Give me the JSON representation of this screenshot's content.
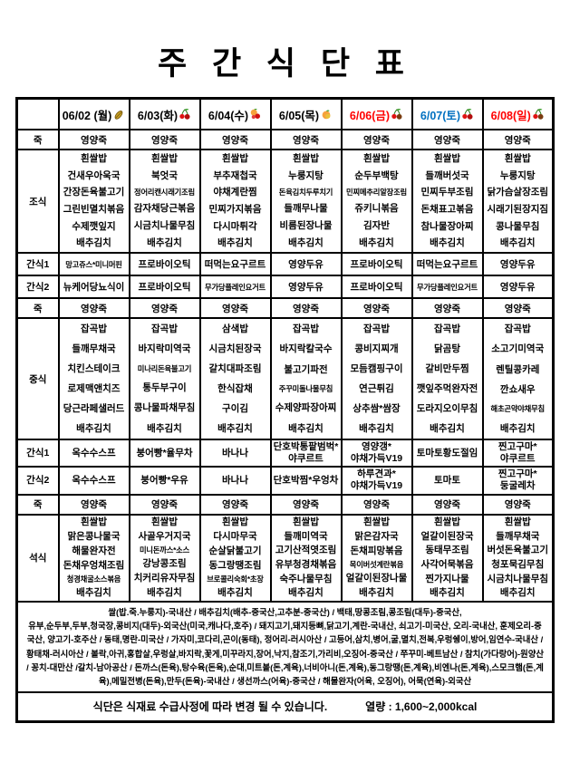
{
  "page_title": "주 간 식 단 표",
  "table": {
    "days": [
      {
        "label": "06/02 (월)",
        "color": "#000000",
        "icon": "grain-icon"
      },
      {
        "label": "6/03(화)",
        "color": "#000000",
        "icon": "cherry-icon"
      },
      {
        "label": "6/04(수)",
        "color": "#000000",
        "icon": "peach-cherry-icon"
      },
      {
        "label": "6/05(목)",
        "color": "#000000",
        "icon": "peach-icon"
      },
      {
        "label": "6/06(금)",
        "color": "#ff0000",
        "icon": "cherry-icon"
      },
      {
        "label": "6/07(토)",
        "color": "#0070c0",
        "icon": "cherry-icon"
      },
      {
        "label": "6/08(일)",
        "color": "#ff0000",
        "icon": "cherry-icon"
      }
    ],
    "rows": {
      "porridge1": {
        "label": "죽",
        "values": [
          "영양죽",
          "영양죽",
          "영양죽",
          "영양죽",
          "영양죽",
          "영양죽",
          "영양죽"
        ]
      },
      "breakfast": {
        "label": "조식",
        "days": [
          [
            "흰쌀밥",
            "건새우아욱국",
            "간장돈육불고기",
            "그린빈멸치볶음",
            "수제깻잎지",
            "배추김치"
          ],
          [
            "흰쌀밥",
            "북엇국",
            "정어리캔시래기조림",
            "감자채당근볶음",
            "시금치나물무침",
            "배추김치"
          ],
          [
            "흰쌀밥",
            "부추재첩국",
            "야채계란찜",
            "민찌가지볶음",
            "다시마튀각",
            "배추김치"
          ],
          [
            "흰쌀밥",
            "누룽지탕",
            "돈육김치두루치기",
            "들깨무나물",
            "비름된장나물",
            "배추김치"
          ],
          [
            "흰쌀밥",
            "순두부백탕",
            "민찌메추리알장조림",
            "쥬키니볶음",
            "김자반",
            "배추김치"
          ],
          [
            "흰쌀밥",
            "들깨버섯국",
            "민찌두부조림",
            "돈채표고볶음",
            "참나물장아찌",
            "배추김치"
          ],
          [
            "흰쌀밥",
            "누룽지탕",
            "닭가슴살장조림",
            "시래기된장지짐",
            "콩나물무침",
            "배추김치"
          ]
        ]
      },
      "snack1am": {
        "label": "간식1",
        "values": [
          "망고쥬스*미니머핀",
          "프로바이오틱",
          "떠먹는요구르트",
          "영양두유",
          "프로바이오틱",
          "떠먹는요구르트",
          "영양두유"
        ]
      },
      "snack2am": {
        "label": "간식2",
        "values": [
          "뉴케어당뇨식이",
          "프로바이오틱",
          "무가당플레인요거트",
          "영양두유",
          "프로바이오틱",
          "무가당플레인요거트",
          "영양두유"
        ]
      },
      "porridge2": {
        "label": "죽",
        "values": [
          "영양죽",
          "영양죽",
          "영양죽",
          "영양죽",
          "영양죽",
          "영양죽",
          "영양죽"
        ]
      },
      "lunch": {
        "label": "중식",
        "days": [
          [
            "잡곡밥",
            "들깨무채국",
            "치킨스테이크",
            "로제맥앤치즈",
            "당근라페샐러드",
            "배추김치"
          ],
          [
            "잡곡밥",
            "바지락미역국",
            "미나리돈육불고기",
            "통두부구이",
            "콩나물파채무침",
            "배추김치"
          ],
          [
            "삼색밥",
            "시금치된장국",
            "갈치대파조림",
            "한식잡채",
            "구이김",
            "배추김치"
          ],
          [
            "잡곡밥",
            "바지락칼국수",
            "불고기파전",
            "주꾸미돌나물무침",
            "수제양파장아찌",
            "배추김치"
          ],
          [
            "잡곡밥",
            "콩비지찌개",
            "모듬캠핑구이",
            "연근튀김",
            "상추쌈*쌈장",
            "배추김치"
          ],
          [
            "잡곡밥",
            "닭곰탕",
            "갈비만두찜",
            "깻잎주먹완자전",
            "도라지오이무침",
            "배추김치"
          ],
          [
            "잡곡밥",
            "소고기미역국",
            "렌틸콩카레",
            "깐쇼새우",
            "해초곤약야채무침",
            "배추김치"
          ]
        ]
      },
      "snack1pm": {
        "label": "간식1",
        "values": [
          "옥수수스프",
          "붕어빵*율무차",
          "바나나",
          "단호박통팥범벅*야쿠르트",
          "영양갱*야채가득V19",
          "토마토황도절임",
          "찐고구마*야쿠르트"
        ]
      },
      "snack2pm": {
        "label": "간식2",
        "values": [
          "옥수수스프",
          "붕어빵*우유",
          "바나나",
          "단호박찜*우엉차",
          "하루견과*야채가득V19",
          "토마토",
          "찐고구마*둥굴레차"
        ]
      },
      "porridge3": {
        "label": "죽",
        "values": [
          "영양죽",
          "영양죽",
          "영양죽",
          "영양죽",
          "영양죽",
          "영양죽",
          "영양죽"
        ]
      },
      "dinner": {
        "label": "석식",
        "days": [
          [
            "흰쌀밥",
            "맑은콩나물국",
            "해물완자전",
            "돈채우엉채조림",
            "청경채굴소스볶음",
            "배추김치"
          ],
          [
            "흰쌀밥",
            "사골우거지국",
            "미니돈까스*소스",
            "강낭콩조림",
            "치커리유자무침",
            "배추김치"
          ],
          [
            "흰쌀밥",
            "다시마무국",
            "순살닭불고기",
            "동그랑땡조림",
            "브로콜리숙회*초장",
            "배추김치"
          ],
          [
            "흰쌀밥",
            "들깨미역국",
            "고기산적엿조림",
            "유부청경채볶음",
            "숙주나물무침",
            "배추김치"
          ],
          [
            "흰쌀밥",
            "맑은감자국",
            "돈채피망볶음",
            "목이버섯계란볶음",
            "얼갈이된장나물",
            "배추김치"
          ],
          [
            "흰쌀밥",
            "얼갈이된장국",
            "동태무조림",
            "사각어묵볶음",
            "찐가지나물",
            "배추김치"
          ],
          [
            "흰쌀밥",
            "들깨무채국",
            "버섯돈육불고기",
            "청포묵김무침",
            "시금치나물무침",
            "배추김치"
          ]
        ]
      }
    }
  },
  "origin": {
    "lines": [
      "쌀(밥.죽.누룽지)-국내산 / 배추김치(배추-중국산,고추분-중국산) / 백태,땅콩조림,콩조림(대두)-중국산,",
      "유부,순두부,두부,청국장,콩비지(대두)-외국산(미국,캐나다,호주) / 돼지고기,돼지등뼈,닭고기,계란-국내산, 쇠고기-미국산, 오리-국내산, 훈제오리-중",
      "국산, 양고기-호주산 / 동태,명란-미국산 / 가자미,코다리,곤이(동태), 정어리-러시아산 / 고등어,삼치,병어,굴,멸치,전복,우렁쉥이,방어,임연수-국내산 /",
      "황태채-러시아산 / 볼락,아귀,홍합살,우렁살,바지락,꽃게,미꾸라지,장어,낙지,참조기,가리비,오징어-중국산 / 쭈꾸미-베트남산 / 참치(가다랑어)-원양산",
      "/ 꽁치-대만산 /갈치-남아공산 / 돈까스(돈육),탕수육(돈육),순대,미트볼(돈,계육),너비아니(돈,계육),동그랑땡(돈,계육),비엔나(돈,계육),스모크햄(돈,계",
      "육),메밀전병(돈육),만두(돈육)-국내산 / 생선까스(어육)-중국산 / 해물완자(어육, 오징어), 어묵(연육)-외국산"
    ]
  },
  "footer": {
    "note": "식단은 식재료 수급사정에 따라 변경 될 수 있습니다.",
    "calories": "열량 : 1,600~2,000kcal"
  }
}
